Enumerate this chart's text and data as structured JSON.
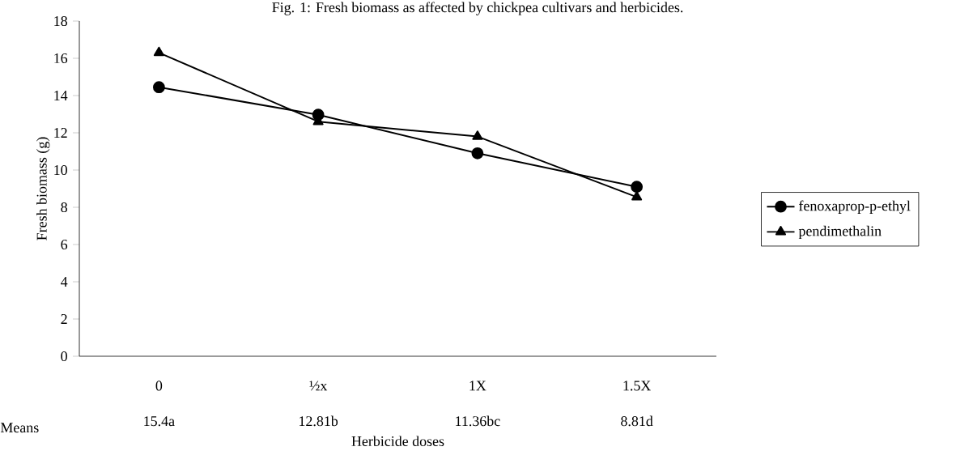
{
  "chart_data": {
    "type": "line",
    "title": "Fig. 1: Fresh biomass as affected by chickpea cultivars and herbicides.",
    "xlabel": "Herbicide doses",
    "ylabel": "Fresh biomass (g)",
    "categories": [
      "0",
      "½x",
      "1X",
      "1.5X"
    ],
    "series": [
      {
        "name": "fenoxaprop-p-ethyl",
        "color": "#000000",
        "marker": "circle",
        "values": [
          14.45,
          12.97,
          10.9,
          9.1
        ]
      },
      {
        "name": "pendimethalin",
        "color": "#000000",
        "marker": "triangle",
        "values": [
          16.3,
          12.6,
          11.8,
          8.55
        ]
      }
    ],
    "ylim": [
      0,
      18
    ],
    "yticks": [
      0,
      2,
      4,
      6,
      8,
      10,
      12,
      14,
      16,
      18
    ],
    "grid": false,
    "legend": "right",
    "line_style": "solid",
    "annotations": [
      "Means",
      "15.4a",
      "12.81b",
      "11.36bc",
      "8.81d"
    ]
  }
}
